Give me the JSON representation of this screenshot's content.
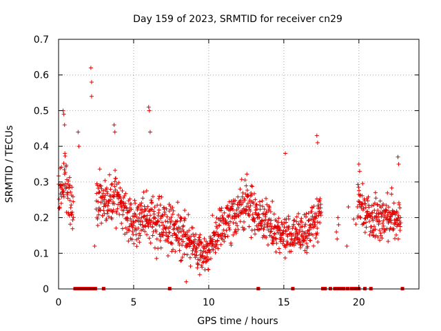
{
  "chart_data": {
    "type": "scatter",
    "title": "Day 159 of 2023, SRMTID for receiver cn29",
    "xlabel": "GPS time / hours",
    "ylabel": "SRMTID / TECUs",
    "xlim": [
      0,
      24
    ],
    "ylim": [
      0,
      0.7
    ],
    "xticks": [
      0,
      5,
      10,
      15,
      20
    ],
    "yticks": [
      0,
      0.1,
      0.2,
      0.3,
      0.4,
      0.5,
      0.6,
      0.7
    ],
    "grid": true,
    "marker": "+",
    "color": "#e00000",
    "envelope": {
      "x": [
        0,
        0.5,
        1,
        1.25,
        2.5,
        3,
        4,
        5,
        6,
        7,
        8,
        9,
        9.5,
        10,
        11,
        12,
        12.5,
        13,
        14,
        15,
        16,
        17,
        17.5,
        18.3,
        19,
        20,
        21,
        22,
        22.8
      ],
      "mean": [
        0.27,
        0.3,
        0.2,
        null,
        0.27,
        0.24,
        0.25,
        0.18,
        0.2,
        0.18,
        0.17,
        0.12,
        0.1,
        0.11,
        0.18,
        0.22,
        0.24,
        0.22,
        0.18,
        0.15,
        0.15,
        0.18,
        0.22,
        null,
        0.15,
        0.24,
        0.2,
        0.2,
        0.2
      ],
      "spread": [
        0.06,
        0.08,
        0.05,
        null,
        0.07,
        0.06,
        0.07,
        0.06,
        0.07,
        0.06,
        0.06,
        0.05,
        0.05,
        0.05,
        0.06,
        0.06,
        0.06,
        0.06,
        0.06,
        0.05,
        0.05,
        0.06,
        0.07,
        null,
        0.06,
        0.06,
        0.06,
        0.06,
        0.06
      ]
    },
    "outliers": [
      {
        "x": 0.3,
        "y": 0.5
      },
      {
        "x": 0.35,
        "y": 0.49
      },
      {
        "x": 0.4,
        "y": 0.46
      },
      {
        "x": 2.15,
        "y": 0.62
      },
      {
        "x": 2.2,
        "y": 0.58
      },
      {
        "x": 2.2,
        "y": 0.54
      },
      {
        "x": 1.3,
        "y": 0.44
      },
      {
        "x": 1.35,
        "y": 0.4
      },
      {
        "x": 2.4,
        "y": 0.12
      },
      {
        "x": 3.7,
        "y": 0.46
      },
      {
        "x": 3.75,
        "y": 0.44
      },
      {
        "x": 6.0,
        "y": 0.51
      },
      {
        "x": 6.05,
        "y": 0.5
      },
      {
        "x": 6.1,
        "y": 0.44
      },
      {
        "x": 8.5,
        "y": 0.02
      },
      {
        "x": 9.4,
        "y": 0.04
      },
      {
        "x": 15.1,
        "y": 0.38
      },
      {
        "x": 17.2,
        "y": 0.43
      },
      {
        "x": 17.25,
        "y": 0.41
      },
      {
        "x": 18.6,
        "y": 0.2
      },
      {
        "x": 18.65,
        "y": 0.18
      },
      {
        "x": 18.5,
        "y": 0.16
      },
      {
        "x": 18.55,
        "y": 0.14
      },
      {
        "x": 19.3,
        "y": 0.23
      },
      {
        "x": 19.2,
        "y": 0.12
      },
      {
        "x": 20.0,
        "y": 0.35
      },
      {
        "x": 20.05,
        "y": 0.33
      },
      {
        "x": 22.6,
        "y": 0.37
      },
      {
        "x": 22.65,
        "y": 0.35
      }
    ],
    "zero_markers_x": [
      1.1,
      1.25,
      1.4,
      1.55,
      1.7,
      1.85,
      2.0,
      2.15,
      2.3,
      2.45,
      3.0,
      7.4,
      13.3,
      15.6,
      17.6,
      17.75,
      18.1,
      18.4,
      18.6,
      18.8,
      19.0,
      19.25,
      19.5,
      19.7,
      19.85,
      20.0,
      20.4,
      20.8,
      22.9
    ]
  }
}
